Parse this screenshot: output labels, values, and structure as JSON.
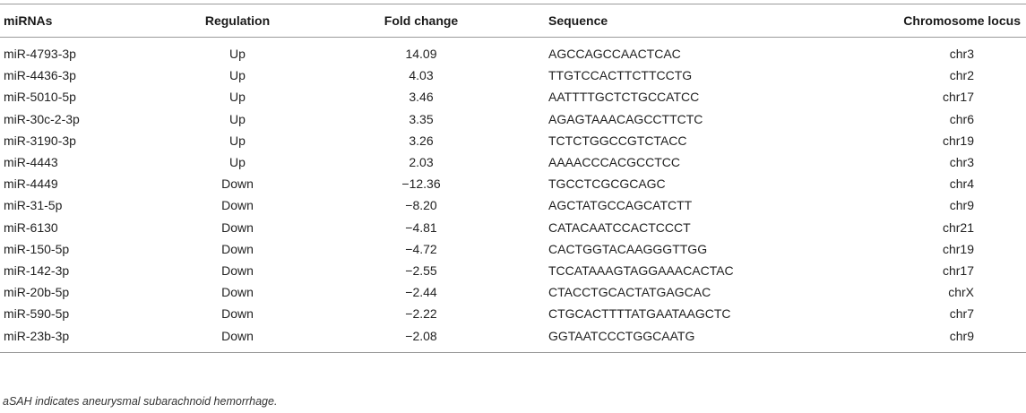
{
  "table": {
    "headers": {
      "mirna": "miRNAs",
      "regulation": "Regulation",
      "fold_change": "Fold change",
      "sequence": "Sequence",
      "chromosome": "Chromosome locus"
    },
    "rows": [
      {
        "mirna": "miR-4793-3p",
        "regulation": "Up",
        "fold_change": "14.09",
        "sequence": "AGCCAGCCAACTCAC",
        "chromosome": "chr3"
      },
      {
        "mirna": "miR-4436-3p",
        "regulation": "Up",
        "fold_change": "4.03",
        "sequence": "TTGTCCACTTCTTCCTG",
        "chromosome": "chr2"
      },
      {
        "mirna": "miR-5010-5p",
        "regulation": "Up",
        "fold_change": "3.46",
        "sequence": "AATTTTGCTCTGCCATCC",
        "chromosome": "chr17"
      },
      {
        "mirna": "miR-30c-2-3p",
        "regulation": "Up",
        "fold_change": "3.35",
        "sequence": "AGAGTAAACAGCCTTCTC",
        "chromosome": "chr6"
      },
      {
        "mirna": "miR-3190-3p",
        "regulation": "Up",
        "fold_change": "3.26",
        "sequence": "TCTCTGGCCGTCTACC",
        "chromosome": "chr19"
      },
      {
        "mirna": "miR-4443",
        "regulation": "Up",
        "fold_change": "2.03",
        "sequence": "AAAACCCACGCCTCC",
        "chromosome": "chr3"
      },
      {
        "mirna": "miR-4449",
        "regulation": "Down",
        "fold_change": "−12.36",
        "sequence": "TGCCTCGCGCAGC",
        "chromosome": "chr4"
      },
      {
        "mirna": "miR-31-5p",
        "regulation": "Down",
        "fold_change": "−8.20",
        "sequence": "AGCTATGCCAGCATCTT",
        "chromosome": "chr9"
      },
      {
        "mirna": "miR-6130",
        "regulation": "Down",
        "fold_change": "−4.81",
        "sequence": "CATACAATCCACTCCCT",
        "chromosome": "chr21"
      },
      {
        "mirna": "miR-150-5p",
        "regulation": "Down",
        "fold_change": "−4.72",
        "sequence": "CACTGGTACAAGGGTTGG",
        "chromosome": "chr19"
      },
      {
        "mirna": "miR-142-3p",
        "regulation": "Down",
        "fold_change": "−2.55",
        "sequence": "TCCATAAAGTAGGAAACACTAC",
        "chromosome": "chr17"
      },
      {
        "mirna": "miR-20b-5p",
        "regulation": "Down",
        "fold_change": "−2.44",
        "sequence": "CTACCTGCACTATGAGCAC",
        "chromosome": "chrX"
      },
      {
        "mirna": "miR-590-5p",
        "regulation": "Down",
        "fold_change": "−2.22",
        "sequence": "CTGCACTTTTATGAATAAGCTC",
        "chromosome": "chr7"
      },
      {
        "mirna": "miR-23b-3p",
        "regulation": "Down",
        "fold_change": "−2.08",
        "sequence": "GGTAATCCCTGGCAATG",
        "chromosome": "chr9"
      }
    ]
  },
  "footnote": "aSAH indicates aneurysmal subarachnoid hemorrhage."
}
